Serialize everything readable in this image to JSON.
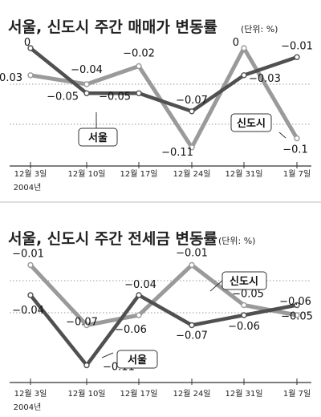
{
  "colors": {
    "seoul": "#505050",
    "sindosi": "#9a9a9a",
    "grid": "#9a9a9a",
    "axis": "#333333",
    "divider": "#bbbbbb"
  },
  "chart_data": [
    {
      "type": "line",
      "title": "서울, 신도시 주간 매매가 변동률",
      "unit": "(단위: %)",
      "categories": [
        "12월 3일",
        "12월 10일",
        "12월 17일",
        "12월 24일",
        "12월 31일",
        "1월 7일"
      ],
      "year_label": "2004년",
      "ylim": [
        -0.12,
        0.0
      ],
      "grid": true,
      "series": [
        {
          "name": "서울",
          "values": [
            0,
            -0.05,
            -0.05,
            -0.07,
            -0.03,
            -0.01
          ],
          "labels": [
            "0",
            "−0.05",
            "−0.05",
            "−0.07",
            "−0.03",
            "−0.01"
          ]
        },
        {
          "name": "신도시",
          "values": [
            -0.03,
            -0.04,
            -0.02,
            -0.11,
            0,
            -0.1
          ],
          "labels": [
            "−0.03",
            "−0.04",
            "−0.02",
            "−0.11",
            "0",
            "−0.1"
          ]
        }
      ]
    },
    {
      "type": "line",
      "title": "서울, 신도시 주간 전세금 변동률",
      "unit": "(단위: %)",
      "categories": [
        "12월 3일",
        "12월 10일",
        "12월 17일",
        "12월 24일",
        "12월 31일",
        "1월 7일"
      ],
      "year_label": "2004년",
      "ylim": [
        -0.12,
        0.0
      ],
      "grid": true,
      "series": [
        {
          "name": "서울",
          "values": [
            -0.04,
            -0.11,
            -0.04,
            -0.07,
            -0.06,
            -0.05
          ],
          "labels": [
            "−0.04",
            "−0.11",
            "−0.04",
            "−0.07",
            "−0.06",
            "−0.05"
          ]
        },
        {
          "name": "신도시",
          "values": [
            -0.01,
            -0.07,
            -0.06,
            -0.01,
            -0.05,
            -0.06
          ],
          "labels": [
            "−0.01",
            "−0.07",
            "−0.06",
            "−0.01",
            "−0.05",
            "−0.06"
          ]
        }
      ]
    }
  ]
}
